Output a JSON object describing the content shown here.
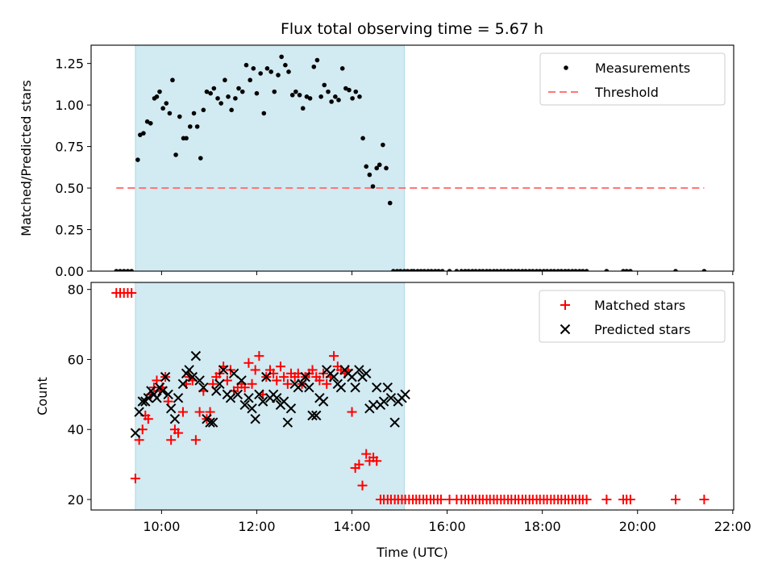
{
  "title": "Flux total observing time = 5.67 h",
  "colors": {
    "shade": "#add8e6",
    "measurements": "#000000",
    "threshold": "#ff7777",
    "matched": "#ff0000",
    "predicted": "#000000"
  },
  "chart_data": [
    {
      "type": "scatter",
      "panel": "top",
      "xlabel": "",
      "ylabel": "Matched/Predicted stars",
      "xlim": [
        8.52,
        22.02
      ],
      "ylim": [
        0,
        1.36
      ],
      "y_ticks": [
        0.0,
        0.25,
        0.5,
        0.75,
        1.0,
        1.25
      ],
      "y_tick_labels": [
        "0.00",
        "0.25",
        "0.50",
        "0.75",
        "1.00",
        "1.25"
      ],
      "x_ticks": [
        10,
        12,
        14,
        16,
        18,
        20,
        22
      ],
      "shaded_span": [
        9.45,
        15.1
      ],
      "legend": {
        "location": "upper right",
        "entries": [
          "Measurements",
          "Threshold"
        ]
      },
      "threshold": {
        "name": "Threshold",
        "y": 0.5,
        "x": [
          9.05,
          21.4
        ],
        "style": "dashed"
      },
      "series": [
        {
          "name": "Measurements",
          "x": [
            9.05,
            9.13,
            9.21,
            9.29,
            9.37,
            9.5,
            9.55,
            9.62,
            9.7,
            9.77,
            9.85,
            9.9,
            9.96,
            10.03,
            10.1,
            10.17,
            10.23,
            10.3,
            10.38,
            10.46,
            10.52,
            10.6,
            10.68,
            10.75,
            10.82,
            10.88,
            10.95,
            11.03,
            11.1,
            11.18,
            11.25,
            11.33,
            11.4,
            11.47,
            11.55,
            11.62,
            11.7,
            11.78,
            11.86,
            11.93,
            12.0,
            12.08,
            12.15,
            12.22,
            12.3,
            12.37,
            12.45,
            12.52,
            12.6,
            12.67,
            12.75,
            12.82,
            12.9,
            12.97,
            13.05,
            13.12,
            13.2,
            13.27,
            13.35,
            13.42,
            13.5,
            13.57,
            13.65,
            13.72,
            13.8,
            13.87,
            13.94,
            14.01,
            14.08,
            14.16,
            14.23,
            14.3,
            14.37,
            14.44,
            14.52,
            14.58,
            14.65,
            14.72,
            14.8,
            14.87,
            14.95,
            15.02,
            15.1,
            15.17,
            15.25,
            15.3,
            15.38,
            15.45,
            15.52,
            15.6,
            15.67,
            15.75,
            15.82,
            15.9,
            16.05,
            16.2,
            16.3,
            16.38,
            16.45,
            16.53,
            16.6,
            16.68,
            16.75,
            16.83,
            16.9,
            16.98,
            17.05,
            17.13,
            17.2,
            17.28,
            17.35,
            17.43,
            17.5,
            17.58,
            17.65,
            17.73,
            17.8,
            17.88,
            17.95,
            18.03,
            18.1,
            18.18,
            18.25,
            18.33,
            18.4,
            18.48,
            18.55,
            18.63,
            18.7,
            18.78,
            18.85,
            18.93,
            19.35,
            19.7,
            19.77,
            19.85,
            20.8,
            21.4
          ],
          "y": [
            0.0,
            0.0,
            0.0,
            0.0,
            0.0,
            0.67,
            0.82,
            0.83,
            0.9,
            0.89,
            1.04,
            1.05,
            1.08,
            0.98,
            1.01,
            0.95,
            1.15,
            0.7,
            0.93,
            0.8,
            0.8,
            0.87,
            0.95,
            0.87,
            0.68,
            0.97,
            1.08,
            1.07,
            1.1,
            1.04,
            1.01,
            1.15,
            1.05,
            0.97,
            1.04,
            1.1,
            1.08,
            1.24,
            1.15,
            1.22,
            1.07,
            1.19,
            0.95,
            1.22,
            1.2,
            1.08,
            1.18,
            1.29,
            1.24,
            1.2,
            1.06,
            1.08,
            1.06,
            0.98,
            1.05,
            1.04,
            1.23,
            1.27,
            1.05,
            1.12,
            1.08,
            1.02,
            1.05,
            1.03,
            1.22,
            1.1,
            1.09,
            1.04,
            1.08,
            1.05,
            0.8,
            0.63,
            0.58,
            0.51,
            0.62,
            0.64,
            0.76,
            0.62,
            0.41,
            0.0,
            0.0,
            0.0,
            0.0,
            0.0,
            0.0,
            0.0,
            0.0,
            0.0,
            0.0,
            0.0,
            0.0,
            0.0,
            0.0,
            0.0,
            0.0,
            0.0,
            0.0,
            0.0,
            0.0,
            0.0,
            0.0,
            0.0,
            0.0,
            0.0,
            0.0,
            0.0,
            0.0,
            0.0,
            0.0,
            0.0,
            0.0,
            0.0,
            0.0,
            0.0,
            0.0,
            0.0,
            0.0,
            0.0,
            0.0,
            0.0,
            0.0,
            0.0,
            0.0,
            0.0,
            0.0,
            0.0,
            0.0,
            0.0,
            0.0,
            0.0,
            0.0,
            0.0,
            0.0,
            0.0,
            0.0,
            0.0,
            0.0,
            0.0
          ]
        }
      ]
    },
    {
      "type": "scatter",
      "panel": "bottom",
      "xlabel": "Time (UTC)",
      "ylabel": "Count",
      "xlim": [
        8.52,
        22.02
      ],
      "ylim": [
        17,
        82
      ],
      "y_ticks": [
        20,
        40,
        60,
        80
      ],
      "y_tick_labels": [
        "20",
        "40",
        "60",
        "80"
      ],
      "x_ticks": [
        10,
        12,
        14,
        16,
        18,
        20,
        22
      ],
      "x_tick_labels": [
        "10:00",
        "12:00",
        "14:00",
        "16:00",
        "18:00",
        "20:00",
        "22:00"
      ],
      "shaded_span": [
        9.45,
        15.1
      ],
      "legend": {
        "location": "upper right",
        "entries": [
          "Matched stars",
          "Predicted stars"
        ]
      },
      "series": [
        {
          "name": "Matched stars",
          "marker": "plus",
          "x": [
            9.05,
            9.13,
            9.21,
            9.29,
            9.37,
            9.45,
            9.53,
            9.6,
            9.66,
            9.72,
            9.78,
            9.84,
            9.9,
            9.96,
            10.02,
            10.08,
            10.14,
            10.2,
            10.28,
            10.35,
            10.45,
            10.52,
            10.58,
            10.65,
            10.72,
            10.8,
            10.88,
            10.95,
            11.02,
            11.08,
            11.15,
            11.22,
            11.3,
            11.38,
            11.45,
            11.52,
            11.6,
            11.68,
            11.75,
            11.83,
            11.9,
            11.97,
            12.05,
            12.13,
            12.2,
            12.28,
            12.35,
            12.42,
            12.5,
            12.57,
            12.65,
            12.72,
            12.8,
            12.87,
            12.95,
            13.02,
            13.1,
            13.17,
            13.25,
            13.32,
            13.4,
            13.47,
            13.55,
            13.62,
            13.7,
            13.77,
            13.85,
            13.92,
            14.0,
            14.07,
            14.15,
            14.22,
            14.3,
            14.37,
            14.45,
            14.52,
            14.6,
            14.67,
            14.75,
            14.82,
            14.9,
            14.97,
            15.05,
            15.12,
            15.2,
            15.28,
            15.35,
            15.42,
            15.5,
            15.57,
            15.65,
            15.72,
            15.8,
            15.87,
            16.05,
            16.2,
            16.3,
            16.38,
            16.45,
            16.53,
            16.6,
            16.68,
            16.75,
            16.83,
            16.9,
            16.98,
            17.05,
            17.13,
            17.2,
            17.28,
            17.35,
            17.43,
            17.5,
            17.58,
            17.65,
            17.73,
            17.8,
            17.88,
            17.95,
            18.03,
            18.1,
            18.18,
            18.25,
            18.33,
            18.4,
            18.48,
            18.55,
            18.63,
            18.7,
            18.78,
            18.85,
            18.93,
            19.35,
            19.7,
            19.77,
            19.85,
            20.8,
            21.4
          ],
          "y": [
            79,
            79,
            79,
            79,
            79,
            26,
            37,
            40,
            44,
            43,
            50,
            52,
            54,
            51,
            52,
            55,
            48,
            37,
            40,
            39,
            45,
            53,
            55,
            54,
            37,
            45,
            51,
            43,
            45,
            53,
            55,
            56,
            58,
            54,
            57,
            51,
            52,
            53,
            52,
            59,
            53,
            57,
            61,
            50,
            55,
            57,
            56,
            54,
            58,
            55,
            53,
            56,
            55,
            56,
            53,
            55,
            56,
            57,
            55,
            54,
            56,
            53,
            55,
            61,
            58,
            57,
            56,
            57,
            45,
            29,
            30,
            24,
            33,
            31,
            32,
            31,
            20,
            20,
            20,
            20,
            20,
            20,
            20,
            20,
            20,
            20,
            20,
            20,
            20,
            20,
            20,
            20,
            20,
            20,
            20,
            20,
            20,
            20,
            20,
            20,
            20,
            20,
            20,
            20,
            20,
            20,
            20,
            20,
            20,
            20,
            20,
            20,
            20,
            20,
            20,
            20,
            20,
            20,
            20,
            20,
            20,
            20,
            20,
            20,
            20,
            20,
            20,
            20,
            20,
            20,
            20,
            20,
            20,
            20,
            20,
            20,
            20,
            20
          ]
        },
        {
          "name": "Predicted stars",
          "marker": "x",
          "x": [
            9.45,
            9.53,
            9.6,
            9.66,
            9.72,
            9.78,
            9.84,
            9.9,
            9.96,
            10.02,
            10.08,
            10.14,
            10.2,
            10.28,
            10.35,
            10.45,
            10.52,
            10.58,
            10.65,
            10.72,
            10.8,
            10.88,
            10.95,
            11.02,
            11.08,
            11.15,
            11.22,
            11.3,
            11.38,
            11.45,
            11.52,
            11.6,
            11.68,
            11.75,
            11.83,
            11.9,
            11.97,
            12.05,
            12.13,
            12.2,
            12.28,
            12.35,
            12.42,
            12.5,
            12.57,
            12.65,
            12.72,
            12.8,
            12.87,
            12.95,
            13.02,
            13.1,
            13.17,
            13.25,
            13.32,
            13.4,
            13.47,
            13.55,
            13.62,
            13.7,
            13.77,
            13.85,
            13.92,
            14.0,
            14.07,
            14.15,
            14.22,
            14.3,
            14.37,
            14.45,
            14.52,
            14.6,
            14.67,
            14.75,
            14.82,
            14.9,
            14.97,
            15.05,
            15.12
          ],
          "y": [
            39,
            45,
            48,
            48,
            49,
            51,
            50,
            49,
            52,
            51,
            55,
            50,
            46,
            43,
            49,
            53,
            56,
            57,
            55,
            61,
            54,
            52,
            43,
            42,
            42,
            51,
            53,
            57,
            50,
            49,
            56,
            50,
            54,
            47,
            49,
            46,
            43,
            50,
            48,
            55,
            49,
            50,
            49,
            47,
            48,
            42,
            46,
            53,
            52,
            53,
            55,
            52,
            44,
            44,
            49,
            48,
            57,
            56,
            55,
            53,
            52,
            57,
            56,
            55,
            52,
            57,
            55,
            56,
            46,
            47,
            52,
            47,
            48,
            52,
            49,
            42,
            48,
            49,
            50
          ]
        }
      ]
    }
  ]
}
